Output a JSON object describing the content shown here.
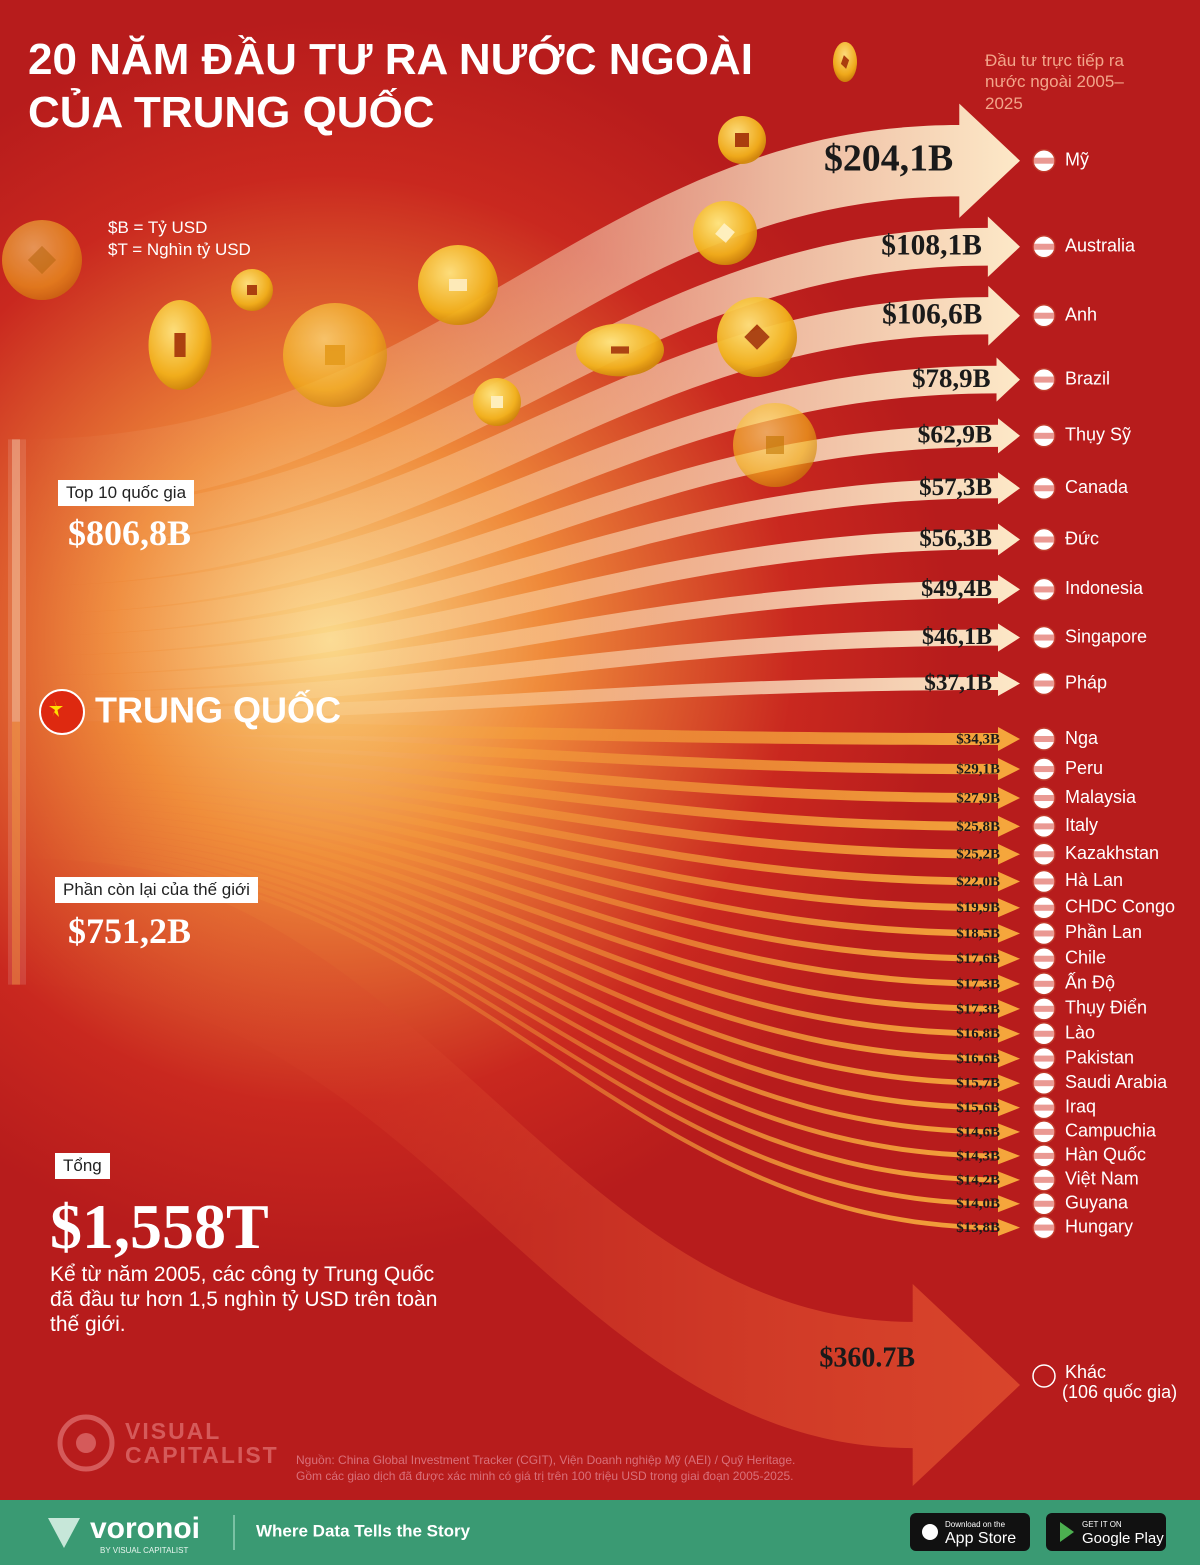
{
  "chart_data": {
    "type": "flow",
    "title": "20 NĂM ĐẦU TƯ RA NƯỚC NGOÀI CỦA TRUNG QUỐC",
    "subtitle": "Đầu tư trực tiếp ra nước ngoài 2005–2025",
    "units_note": [
      "$B = Tỷ USD",
      "$T = Nghìn tỷ USD"
    ],
    "source": "TRUNG QUỐC",
    "series": [
      {
        "name": "Top 10 quốc gia",
        "value": 806.8,
        "value_label": "$806,8B",
        "color": "#fde9c8",
        "categories": [
          "Mỹ",
          "Australia",
          "Anh",
          "Brazil",
          "Thụy Sỹ",
          "Canada",
          "Đức",
          "Indonesia",
          "Singapore",
          "Pháp"
        ],
        "values": [
          204.1,
          108.1,
          106.6,
          78.9,
          62.9,
          57.3,
          56.3,
          49.4,
          46.1,
          37.1
        ],
        "value_labels": [
          "$204,1B",
          "$108,1B",
          "$106,6B",
          "$78,9B",
          "$62,9B",
          "$57,3B",
          "$56,3B",
          "$49,4B",
          "$46,1B",
          "$37,1B"
        ]
      },
      {
        "name": "Phần còn lại của thế giới",
        "value": 751.2,
        "value_label": "$751,2B",
        "color": "#f6a83c",
        "categories": [
          "Nga",
          "Peru",
          "Malaysia",
          "Italy",
          "Kazakhstan",
          "Hà Lan",
          "CHDC Congo",
          "Phần Lan",
          "Chile",
          "Ấn Độ",
          "Thụy Điển",
          "Lào",
          "Pakistan",
          "Saudi Arabia",
          "Iraq",
          "Campuchia",
          "Hàn Quốc",
          "Việt Nam",
          "Guyana",
          "Hungary"
        ],
        "values": [
          34.3,
          29.1,
          27.9,
          25.8,
          25.2,
          22.0,
          19.9,
          18.5,
          17.6,
          17.3,
          17.3,
          16.8,
          16.6,
          15.7,
          15.6,
          14.6,
          14.3,
          14.2,
          14.0,
          13.8
        ],
        "value_labels": [
          "$34,3B",
          "$29,1B",
          "$27,9B",
          "$25,8B",
          "$25,2B",
          "$22,0B",
          "$19,9B",
          "$18,5B",
          "$17,6B",
          "$17,3B",
          "$17,3B",
          "$16,8B",
          "$16,6B",
          "$15,7B",
          "$15,6B",
          "$14,6B",
          "$14,3B",
          "$14,2B",
          "$14,0B",
          "$13,8B"
        ]
      }
    ],
    "other": {
      "name": "Khác",
      "note": "(106 quốc gia)",
      "value": 360.7,
      "value_label": "$360.7B",
      "color": "#d9452b"
    },
    "total": {
      "label": "Tổng",
      "value": 1558,
      "value_label": "$1,558T"
    },
    "description": "Kể từ năm 2005, các công ty Trung Quốc đã đầu tư hơn 1,5 nghìn tỷ USD trên toàn thế giới."
  },
  "footer": {
    "logo": [
      "VISUAL",
      "CAPITALIST"
    ],
    "source_notes": [
      "Nguồn: China Global Investment Tracker (CGIT), Viện Doanh nghiệp Mỹ (AEI) / Quỹ Heritage.",
      "Gồm các giao dịch đã được xác minh có giá trị trên 100 triệu USD trong giai đoạn 2005-2025."
    ],
    "brand": "voronoi",
    "brand_sub": "BY VISUAL CAPITALIST",
    "tagline": "Where Data Tells the Story",
    "app_store": [
      "Download on the",
      "App Store"
    ],
    "google_play": [
      "GET IT ON",
      "Google Play"
    ]
  }
}
